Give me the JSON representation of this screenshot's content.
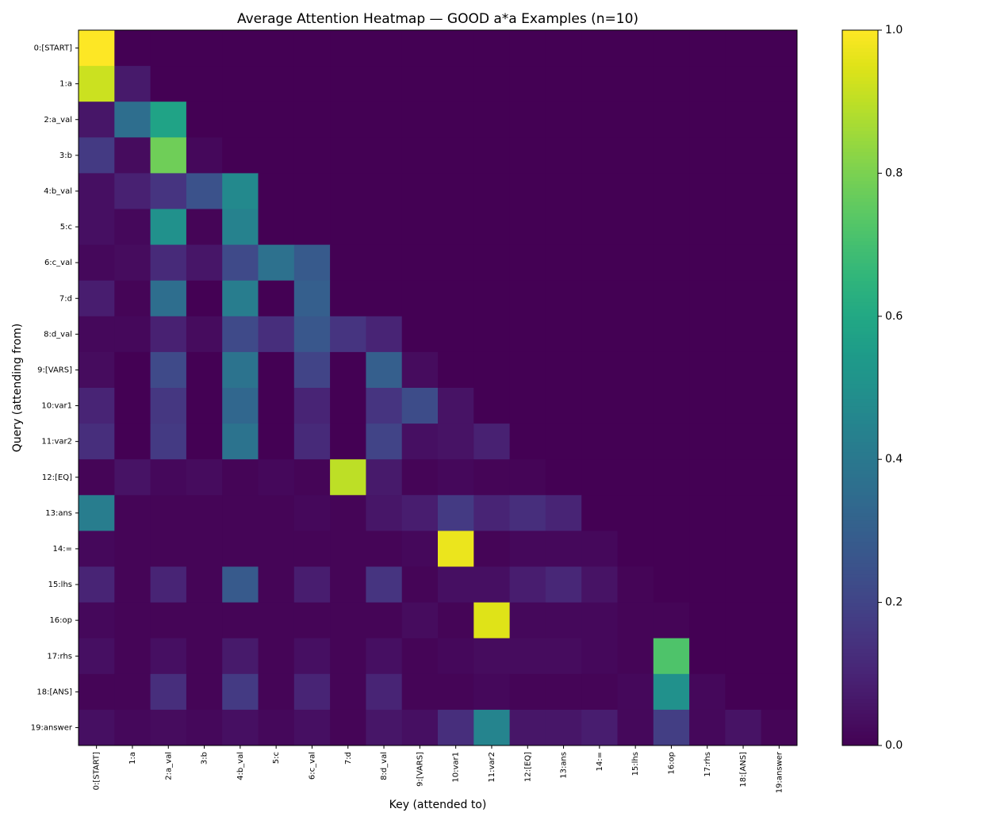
{
  "chart_data": {
    "type": "heatmap",
    "title": "Average Attention Heatmap — GOOD a*a Examples (n=10)",
    "x_label": "Key (attended to)",
    "y_label": "Query (attending from)",
    "x_categories": [
      "0:[START]",
      "1:a",
      "2:a_val",
      "3:b",
      "4:b_val",
      "5:c",
      "6:c_val",
      "7:d",
      "8:d_val",
      "9:[VARS]",
      "10:var1",
      "11:var2",
      "12:[EQ]",
      "13:ans",
      "14:=",
      "15:lhs",
      "16:op",
      "17:rhs",
      "18:[ANS]",
      "19:answer"
    ],
    "y_categories": [
      "0:[START]",
      "1:a",
      "2:a_val",
      "3:b",
      "4:b_val",
      "5:c",
      "6:c_val",
      "7:d",
      "8:d_val",
      "9:[VARS]",
      "10:var1",
      "11:var2",
      "12:[EQ]",
      "13:ans",
      "14:=",
      "15:lhs",
      "16:op",
      "17:rhs",
      "18:[ANS]",
      "19:answer"
    ],
    "values": [
      [
        1,
        0,
        0,
        0,
        0,
        0,
        0,
        0,
        0,
        0,
        0,
        0,
        0,
        0,
        0,
        0,
        0,
        0,
        0,
        0
      ],
      [
        0.92,
        0.07,
        0,
        0,
        0,
        0,
        0,
        0,
        0,
        0,
        0,
        0,
        0,
        0,
        0,
        0,
        0,
        0,
        0,
        0
      ],
      [
        0.06,
        0.36,
        0.58,
        0,
        0,
        0,
        0,
        0,
        0,
        0,
        0,
        0,
        0,
        0,
        0,
        0,
        0,
        0,
        0,
        0
      ],
      [
        0.17,
        0.03,
        0.78,
        0.02,
        0,
        0,
        0,
        0,
        0,
        0,
        0,
        0,
        0,
        0,
        0,
        0,
        0,
        0,
        0,
        0
      ],
      [
        0.04,
        0.09,
        0.15,
        0.25,
        0.47,
        0,
        0,
        0,
        0,
        0,
        0,
        0,
        0,
        0,
        0,
        0,
        0,
        0,
        0,
        0
      ],
      [
        0.04,
        0.02,
        0.5,
        0.01,
        0.44,
        0,
        0,
        0,
        0,
        0,
        0,
        0,
        0,
        0,
        0,
        0,
        0,
        0,
        0,
        0
      ],
      [
        0.02,
        0.03,
        0.12,
        0.06,
        0.22,
        0.37,
        0.28,
        0,
        0,
        0,
        0,
        0,
        0,
        0,
        0,
        0,
        0,
        0,
        0,
        0
      ],
      [
        0.08,
        0.01,
        0.36,
        0,
        0.42,
        0,
        0.3,
        0,
        0,
        0,
        0,
        0,
        0,
        0,
        0,
        0,
        0,
        0,
        0,
        0
      ],
      [
        0.02,
        0.02,
        0.09,
        0.03,
        0.22,
        0.13,
        0.27,
        0.15,
        0.1,
        0,
        0,
        0,
        0,
        0,
        0,
        0,
        0,
        0,
        0,
        0
      ],
      [
        0.03,
        0,
        0.22,
        0,
        0.38,
        0,
        0.2,
        0,
        0.3,
        0.03,
        0,
        0,
        0,
        0,
        0,
        0,
        0,
        0,
        0,
        0
      ],
      [
        0.1,
        0,
        0.16,
        0,
        0.33,
        0,
        0.1,
        0,
        0.15,
        0.23,
        0.05,
        0,
        0,
        0,
        0,
        0,
        0,
        0,
        0,
        0
      ],
      [
        0.13,
        0,
        0.17,
        0,
        0.38,
        0,
        0.12,
        0,
        0.2,
        0.04,
        0.05,
        0.09,
        0,
        0,
        0,
        0,
        0,
        0,
        0,
        0
      ],
      [
        0.01,
        0.05,
        0.02,
        0.03,
        0.01,
        0.02,
        0.01,
        0.9,
        0.07,
        0.01,
        0.02,
        0.01,
        0.01,
        0,
        0,
        0,
        0,
        0,
        0,
        0
      ],
      [
        0.42,
        0.01,
        0.01,
        0.01,
        0.01,
        0.01,
        0.02,
        0.01,
        0.06,
        0.08,
        0.17,
        0.1,
        0.13,
        0.1,
        0,
        0,
        0,
        0,
        0,
        0
      ],
      [
        0.02,
        0.01,
        0.01,
        0.01,
        0.01,
        0.01,
        0.01,
        0.01,
        0.01,
        0.02,
        0.97,
        0.01,
        0.02,
        0.02,
        0.02,
        0,
        0,
        0,
        0,
        0
      ],
      [
        0.1,
        0.01,
        0.1,
        0.01,
        0.28,
        0.01,
        0.08,
        0.01,
        0.15,
        0.01,
        0.04,
        0.04,
        0.08,
        0.11,
        0.05,
        0.01,
        0,
        0,
        0,
        0
      ],
      [
        0.02,
        0.01,
        0.01,
        0.01,
        0.01,
        0.01,
        0.01,
        0.01,
        0.01,
        0.03,
        0.01,
        0.95,
        0.02,
        0.02,
        0.02,
        0.01,
        0.01,
        0,
        0,
        0
      ],
      [
        0.04,
        0.01,
        0.04,
        0.01,
        0.07,
        0.01,
        0.04,
        0.01,
        0.04,
        0.01,
        0.02,
        0.03,
        0.03,
        0.03,
        0.02,
        0.01,
        0.72,
        0,
        0,
        0
      ],
      [
        0.01,
        0.01,
        0.13,
        0.01,
        0.17,
        0.01,
        0.1,
        0.01,
        0.1,
        0.01,
        0.01,
        0.02,
        0.01,
        0.01,
        0.01,
        0.02,
        0.5,
        0.02,
        0,
        0
      ],
      [
        0.04,
        0.02,
        0.03,
        0.02,
        0.04,
        0.02,
        0.04,
        0.01,
        0.06,
        0.04,
        0.13,
        0.45,
        0.06,
        0.06,
        0.08,
        0.02,
        0.18,
        0.02,
        0.05,
        0.01
      ]
    ],
    "colormap": [
      "#440154",
      "#471365",
      "#482475",
      "#463480",
      "#414487",
      "#3b528b",
      "#355f8d",
      "#2f6c8e",
      "#2a788e",
      "#25848e",
      "#21918c",
      "#1e9c89",
      "#22a884",
      "#2fb47c",
      "#44bf70",
      "#5ec962",
      "#7ad151",
      "#9bd93c",
      "#bddf26",
      "#dfe318",
      "#fde725"
    ],
    "clim": [
      0,
      1
    ],
    "cticks": [
      {
        "value": 0,
        "label": "0.0"
      },
      {
        "value": 0.2,
        "label": "0.2"
      },
      {
        "value": 0.4,
        "label": "0.4"
      },
      {
        "value": 0.6,
        "label": "0.6"
      },
      {
        "value": 0.8,
        "label": "0.8"
      },
      {
        "value": 1,
        "label": "1.0"
      }
    ]
  }
}
